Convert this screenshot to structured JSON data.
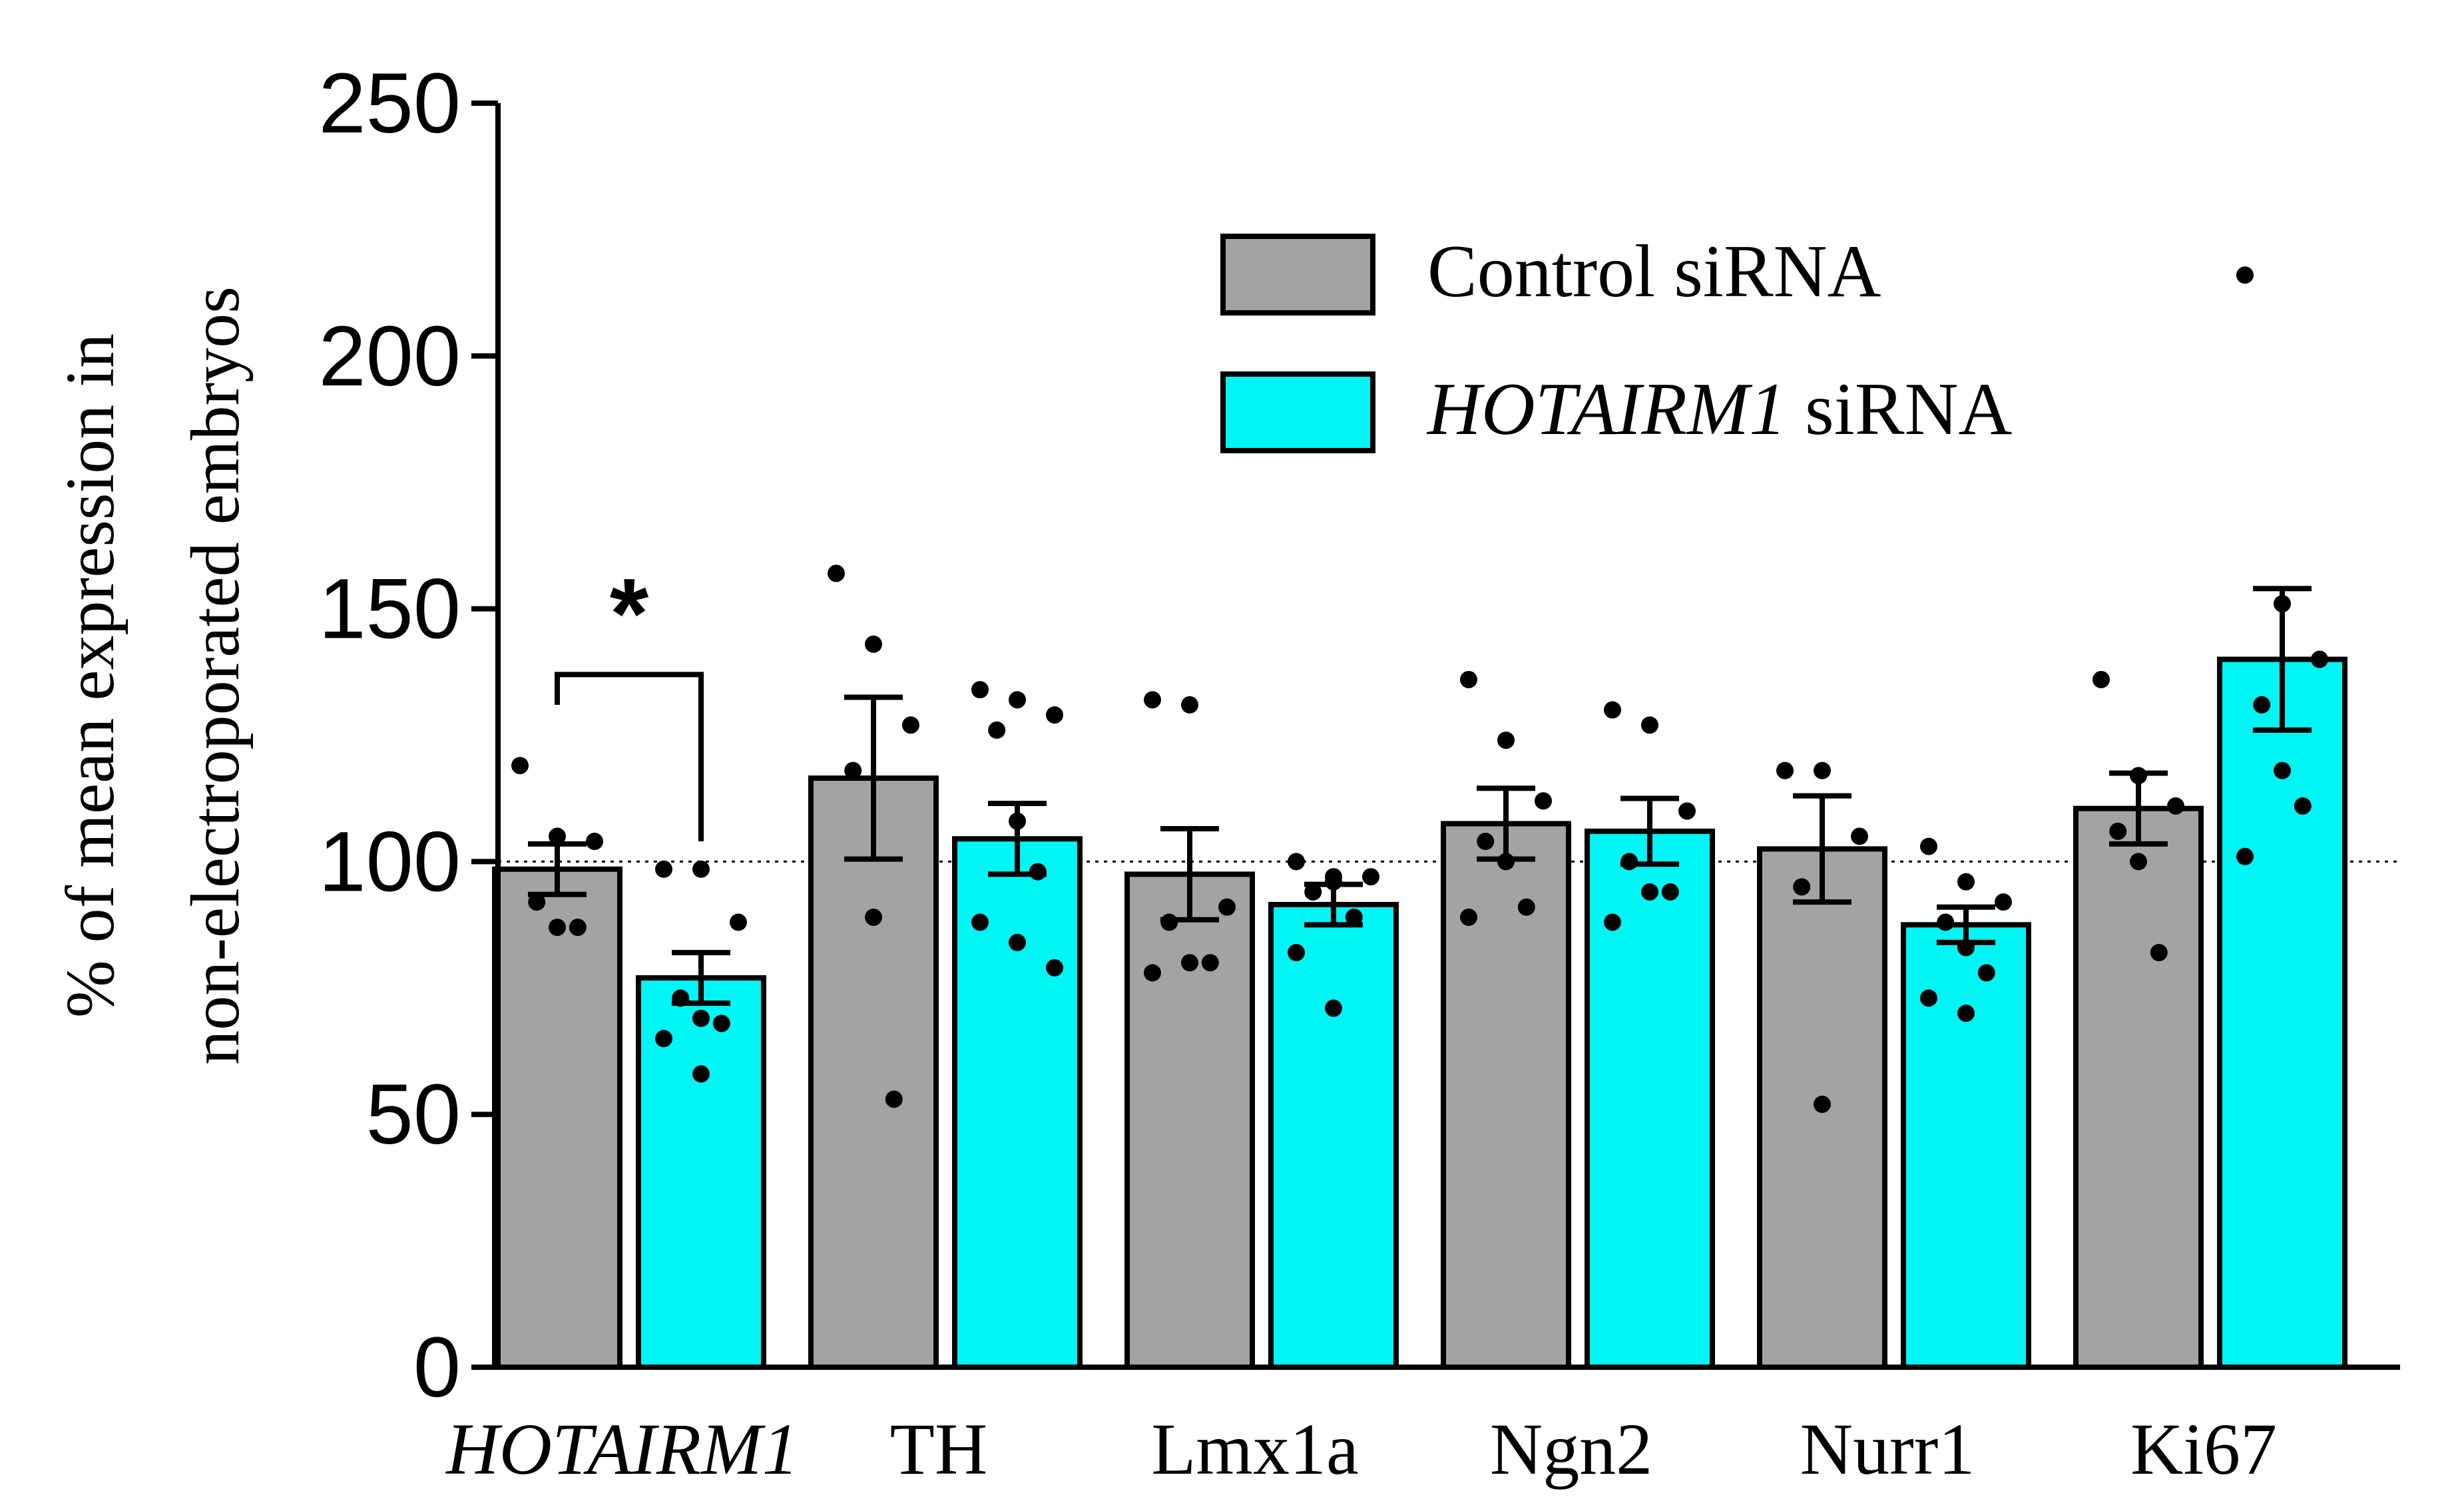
{
  "chart_data": {
    "type": "bar",
    "title": "",
    "ylabel_lines": [
      "% of mean expression in",
      "non-electroporated embryos"
    ],
    "xlabel": "",
    "ylim": [
      0,
      250
    ],
    "yticks": [
      "0",
      "50",
      "100",
      "150",
      "200",
      "250"
    ],
    "reference_line": 100,
    "categories": [
      {
        "label": "HOTAIRM1",
        "italic": true
      },
      {
        "label": "TH",
        "italic": false
      },
      {
        "label": "Lmx1a",
        "italic": false
      },
      {
        "label": "Ngn2",
        "italic": false
      },
      {
        "label": "Nurr1",
        "italic": false
      },
      {
        "label": "Ki67",
        "italic": false
      }
    ],
    "series": [
      {
        "name": "Control siRNA",
        "name_parts": [
          {
            "text": "Control siRNA",
            "italic": false
          }
        ],
        "color": "#a3a3a6",
        "values": [
          98.5,
          116.5,
          97.5,
          107.5,
          102.5,
          110.5
        ],
        "sem": [
          5,
          16,
          9,
          7,
          10.5,
          7
        ],
        "points": [
          [
            119,
            105,
            104,
            92,
            87,
            87
          ],
          [
            157,
            143,
            127,
            118,
            89,
            53
          ],
          [
            132,
            131,
            91,
            88,
            80,
            80,
            78
          ],
          [
            136,
            124,
            112,
            104,
            100,
            91,
            89
          ],
          [
            118,
            118,
            105,
            95,
            52
          ],
          [
            136,
            117,
            111,
            106,
            100,
            82
          ]
        ]
      },
      {
        "name": "HOTAIRM1 siRNA",
        "name_parts": [
          {
            "text": "HOTAIRM1",
            "italic": true
          },
          {
            "text": " siRNA",
            "italic": false
          }
        ],
        "color": "#00f5f5",
        "values": [
          77,
          104.5,
          91.5,
          106,
          87.5,
          140
        ],
        "sem": [
          5,
          7,
          4,
          6.5,
          3.5,
          14
        ],
        "points": [
          [
            98.5,
            98.5,
            88,
            73,
            69,
            68,
            65,
            58
          ],
          [
            134,
            132,
            129,
            126,
            108,
            98,
            88,
            84,
            79
          ],
          [
            100,
            97,
            97,
            94,
            96,
            89,
            82,
            71
          ],
          [
            130,
            127,
            110,
            100,
            94,
            94,
            88
          ],
          [
            103,
            96,
            92,
            88,
            83,
            78,
            73,
            70
          ],
          [
            216,
            151,
            140,
            131,
            118,
            111,
            101
          ]
        ]
      }
    ],
    "significance": [
      {
        "category_index": 0,
        "label": "*"
      }
    ],
    "legend": {
      "position": "top-right"
    }
  }
}
